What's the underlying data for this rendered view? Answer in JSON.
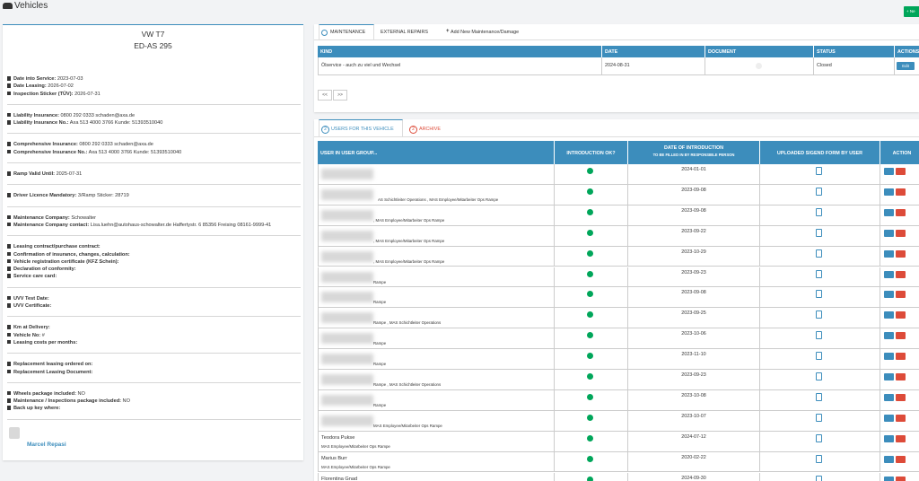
{
  "header": {
    "title": "Vehicles",
    "new_button": "+ Ne"
  },
  "vehicle": {
    "name": "VW T7",
    "plate": "ED-AS 295",
    "groups": [
      [
        {
          "label": "Date into Service:",
          "value": "2023-07-03"
        },
        {
          "label": "Date Leasing:",
          "value": "2026-07-02"
        },
        {
          "label": "Inspection Sticker (TÜV):",
          "value": "2026-07-31"
        }
      ],
      [
        {
          "label": "Liability Insurance:",
          "value": "0800 292 0333 schaden@axa.de"
        },
        {
          "label": "Liability Insurance No.:",
          "value": "Axa 513 4000 3766 Kunde: 51393510040"
        }
      ],
      [
        {
          "label": "Comprehensive Insurance:",
          "value": "0800 292 0333 schaden@axa.de"
        },
        {
          "label": "Comprehensive Insurance No.:",
          "value": "Axa 513 4000 3766 Kunde: 51393510040"
        }
      ],
      [
        {
          "label": "Ramp Valid Until:",
          "value": "2025-07-31"
        }
      ],
      [
        {
          "label": "Driver Licence Mandatory:",
          "value": "3/Ramp Sticker: 28719"
        }
      ],
      [
        {
          "label": "Maintenance Company:",
          "value": "Schowalter"
        },
        {
          "label": "Maintenance Company contact:",
          "value": "Lisa.luehn@autohaus-schowalter.de Haffertystr. 6 85356 Freising 08161-9999-41"
        }
      ],
      [
        {
          "label": "Leasing contract/purchase contract:"
        },
        {
          "label": "Confirmation of insurance, changes, calculation:"
        },
        {
          "label": "Vehicle registration certificate (KFZ Schein):"
        },
        {
          "label": "Declaration of conformity:"
        },
        {
          "label": "Service care card:"
        }
      ],
      [
        {
          "label": "UVV Test Date:"
        },
        {
          "label": "UVV Certificate:"
        }
      ],
      [
        {
          "label": "Km at Delivery:"
        },
        {
          "label": "Vehicle No:",
          "value": "#"
        },
        {
          "label": "Leasing costs per months:"
        }
      ],
      [
        {
          "label": "Replacement leasing ordered on:"
        },
        {
          "label": "Replacement Leasing Document:"
        }
      ],
      [
        {
          "label": "Wheels package included:",
          "value": "NO"
        },
        {
          "label": "Maintenance / Inspections package included:",
          "value": "NO"
        },
        {
          "label": "Back up key where:"
        }
      ]
    ],
    "user": "Marcel Repasi"
  },
  "maintenance": {
    "tabs": [
      "MAINTENANCE",
      "EXTERNAL REPAIRS",
      "Add New Maintenance/Damage"
    ],
    "columns": [
      "KIND",
      "DATE",
      "DOCUMENT",
      "STATUS",
      "ACTIONS"
    ],
    "rows": [
      {
        "kind": "Ölservice - auch zu viel und Wechsel",
        "date": "2024-08-31",
        "status": "Closed",
        "action": "Edit"
      }
    ],
    "pagination": [
      "<<",
      ">>"
    ]
  },
  "users": {
    "tabs": [
      {
        "badge": "2",
        "label": "USERS FOR THIS VEHICLE"
      },
      {
        "badge": "2",
        "label": "ARCHIVE"
      }
    ],
    "columns": [
      "USER IN USER GROUP...",
      "INTRODUCTION OK?",
      "DATE OF INTRODUCTION",
      "UPLOADED SIGEND FORM BY USER",
      "ACTION"
    ],
    "date_note": "TO BE FILLED IN BY RESPONSIBLE PERSON",
    "rows": [
      {
        "date": "2024-01-01"
      },
      {
        "group": "AS Schichtleiter Operations , MAS Employee/Mitarbeiter Ops Rampe",
        "date": "2023-09-08"
      },
      {
        "group": ", MAS Employee/Mitarbeiter Ops Rampe",
        "date": "2023-09-08"
      },
      {
        "group": ", MAS Employee/Mitarbeiter Ops Rampe",
        "date": "2023-09-22"
      },
      {
        "group": ", MAS Employee/Mitarbeiter Ops Rampe",
        "date": "2023-10-29"
      },
      {
        "group": "Rampe",
        "date": "2023-09-23"
      },
      {
        "group": "Rampe",
        "date": "2023-09-08"
      },
      {
        "group": "Rampe , MAS Schichtleiter Operations",
        "date": "2023-09-25"
      },
      {
        "group": "Rampe",
        "date": "2023-10-06"
      },
      {
        "group": "Rampe",
        "date": "2023-11-10"
      },
      {
        "group": "Rampe , MAS Schichtleiter Operations",
        "date": "2023-09-23"
      },
      {
        "group": "Rampe",
        "date": "2023-10-08"
      },
      {
        "group": "MAS Employee/Mitarbeiter Ops Rampe",
        "date": "2023-10-07"
      },
      {
        "name": "Teodora Pukse",
        "group": "MAS Employee/Mitarbeiter Ops Rampe",
        "date": "2024-07-12"
      },
      {
        "name": "Marius Burr",
        "group": "MAS Employee/Mitarbeiter Ops Rampe",
        "date": "2020-02-22"
      },
      {
        "name": "Florentina Gnad",
        "date": "2024-09-30"
      }
    ]
  }
}
